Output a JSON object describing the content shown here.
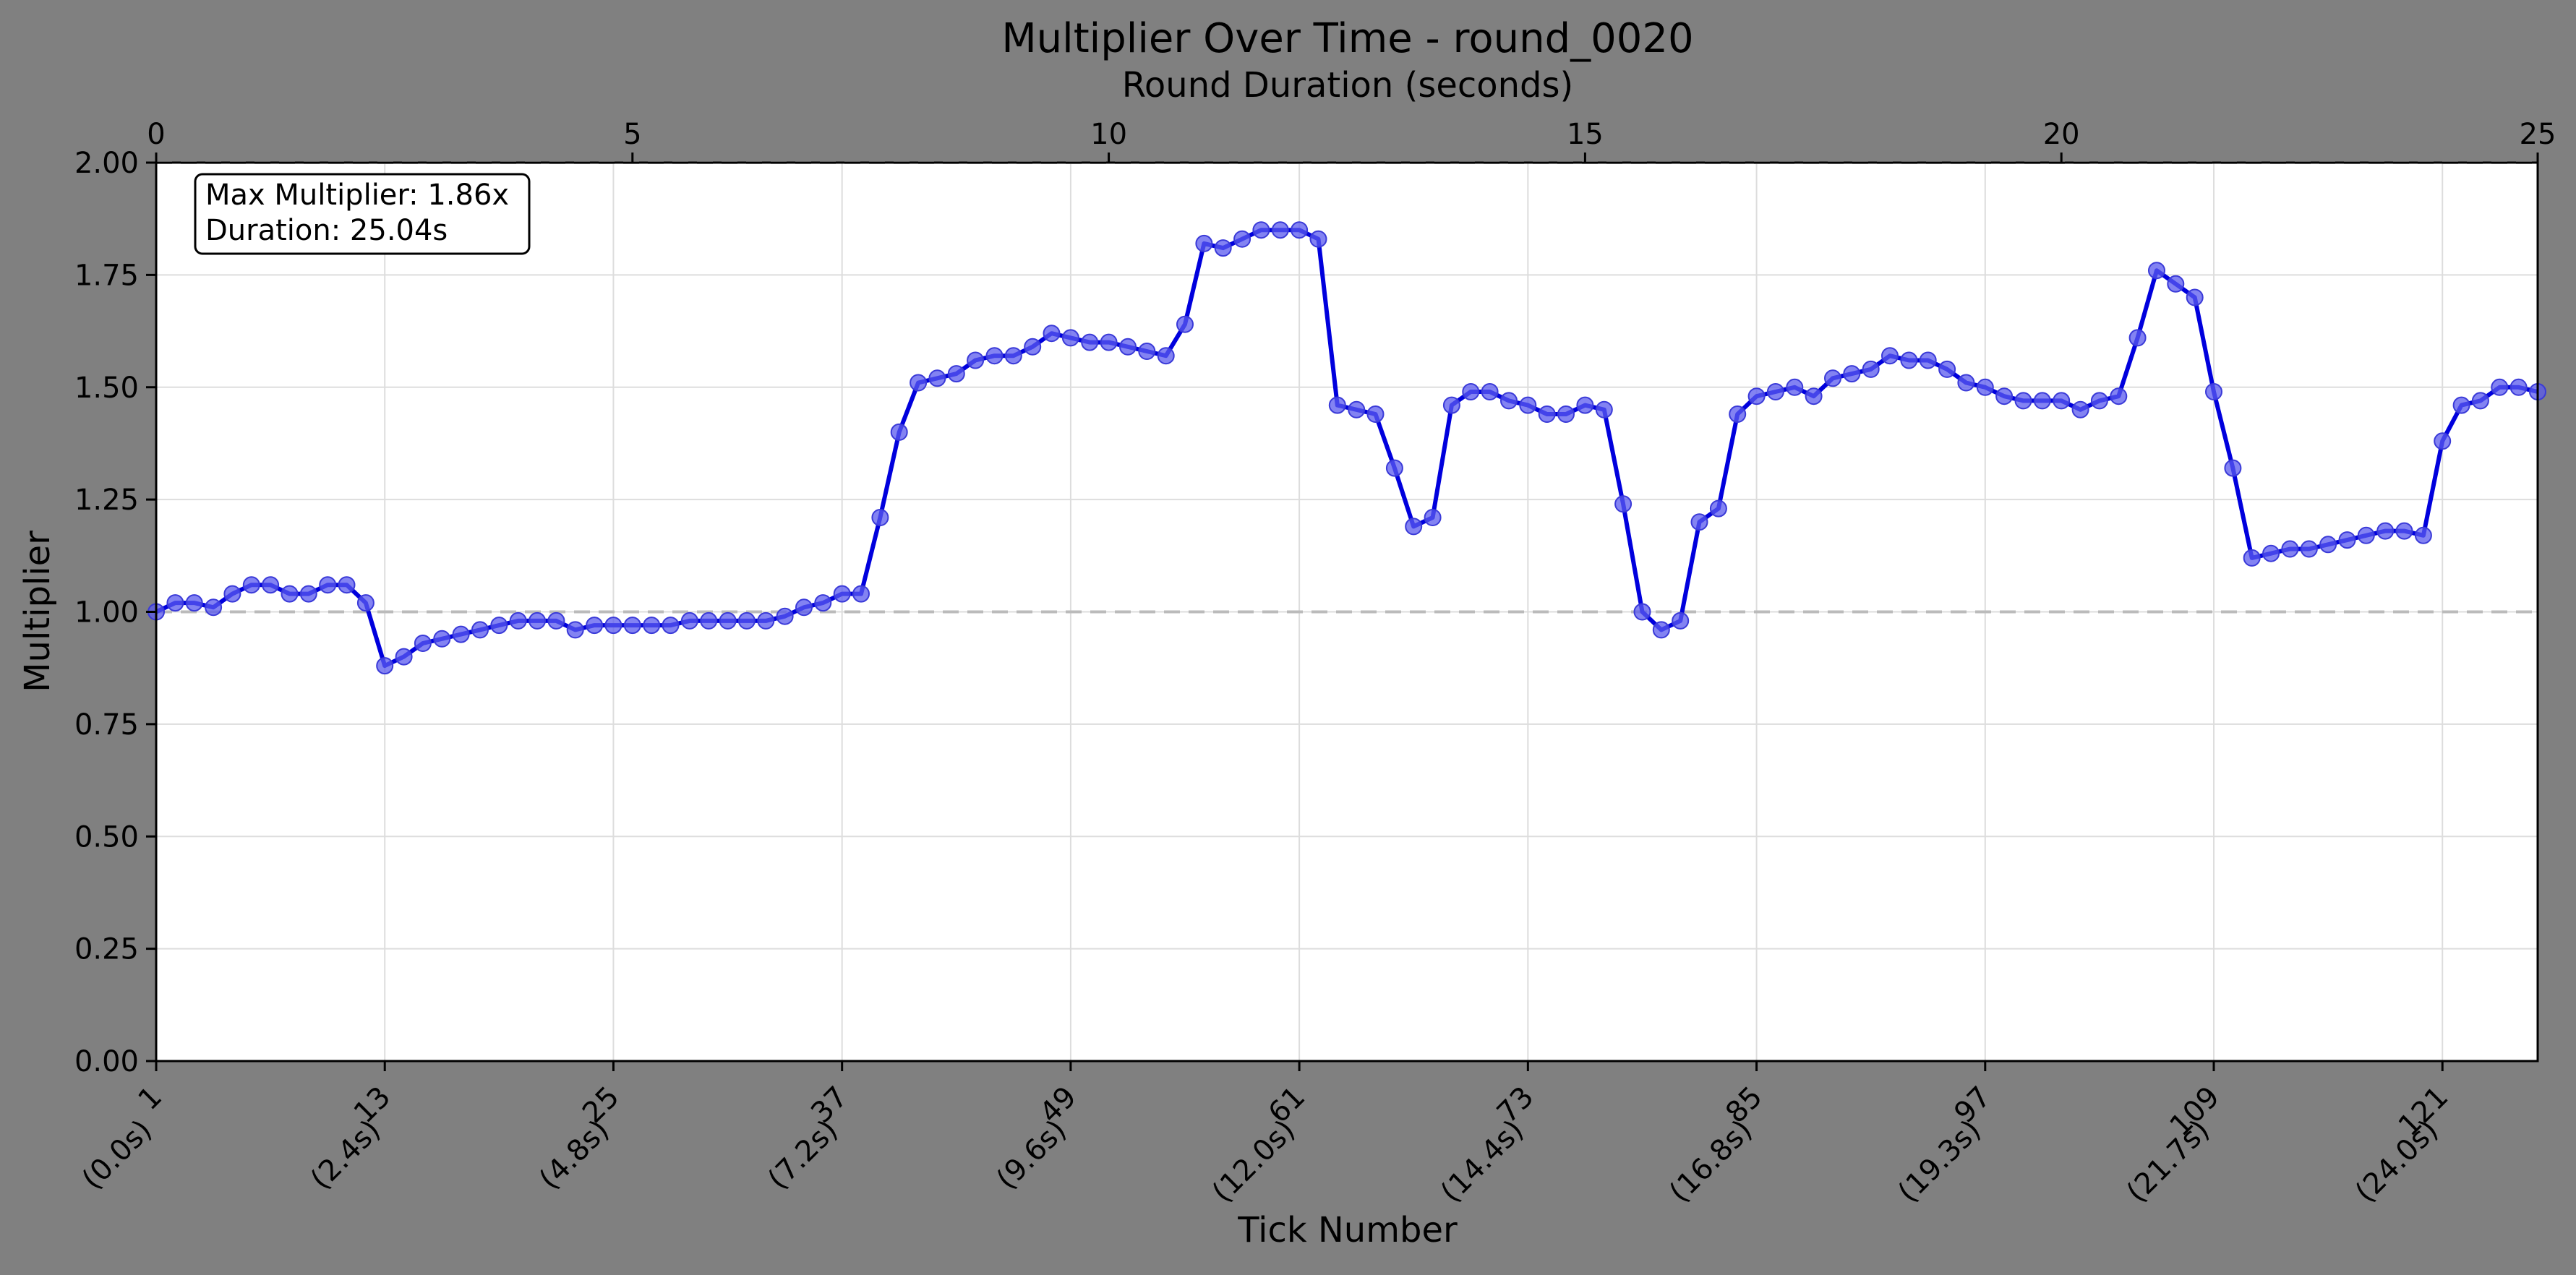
{
  "chart_data": {
    "type": "line",
    "title": "Multiplier Over Time - round_0020",
    "xlabel": "Tick Number",
    "ylabel": "Multiplier",
    "top_xlabel": "Round Duration (seconds)",
    "xlim": [
      1,
      126
    ],
    "ylim": [
      0.0,
      2.0
    ],
    "top_xlim": [
      0,
      25
    ],
    "top_ticks": [
      "0",
      "5",
      "10",
      "15",
      "20",
      "25"
    ],
    "y_ticks": [
      "0.00",
      "0.25",
      "0.50",
      "0.75",
      "1.00",
      "1.25",
      "1.50",
      "1.75",
      "2.00"
    ],
    "x_ticks": [
      {
        "tick": 1,
        "label": "1",
        "sub": "(0.0s)"
      },
      {
        "tick": 13,
        "label": "13",
        "sub": "(2.4s)"
      },
      {
        "tick": 25,
        "label": "25",
        "sub": "(4.8s)"
      },
      {
        "tick": 37,
        "label": "37",
        "sub": "(7.2s)"
      },
      {
        "tick": 49,
        "label": "49",
        "sub": "(9.6s)"
      },
      {
        "tick": 61,
        "label": "61",
        "sub": "(12.0s)"
      },
      {
        "tick": 73,
        "label": "73",
        "sub": "(14.4s)"
      },
      {
        "tick": 85,
        "label": "85",
        "sub": "(16.8s)"
      },
      {
        "tick": 97,
        "label": "97",
        "sub": "(19.3s)"
      },
      {
        "tick": 109,
        "label": "109",
        "sub": "(21.7s)"
      },
      {
        "tick": 121,
        "label": "121",
        "sub": "(24.0s)"
      }
    ],
    "reference_lines": [
      1.0,
      2.0
    ],
    "grid": true,
    "line_color": "#0000dd",
    "marker_color": "#5a5aee",
    "annotation": {
      "line1": "Max Multiplier: 1.86x",
      "line2": "Duration: 25.04s"
    },
    "series": [
      {
        "ticks": [
          1,
          2,
          3,
          4,
          5,
          6,
          7,
          8,
          9,
          10,
          11,
          12,
          13,
          14,
          15,
          16,
          17,
          18,
          19,
          20,
          21,
          22,
          23,
          24,
          25,
          26,
          27,
          28,
          29,
          30,
          31,
          32,
          33,
          34,
          35,
          36,
          37,
          38,
          39,
          40,
          41,
          42,
          43,
          44,
          45,
          46,
          47,
          48,
          49,
          50,
          51,
          52,
          53,
          54,
          55,
          56,
          57,
          58,
          59,
          60,
          61,
          62,
          63,
          64,
          65,
          66,
          67,
          68,
          69,
          70,
          71,
          72,
          73,
          74,
          75,
          76,
          77,
          78,
          79,
          80,
          81,
          82,
          83,
          84,
          85,
          86,
          87,
          88,
          89,
          90,
          91,
          92,
          93,
          94,
          95,
          96,
          97,
          98,
          99,
          100,
          101,
          102,
          103,
          104,
          105,
          106,
          107,
          108,
          109,
          110,
          111,
          112,
          113,
          114,
          115,
          116,
          117,
          118,
          119,
          120,
          121,
          122,
          123,
          124,
          125,
          126
        ],
        "values": [
          1.0,
          1.02,
          1.02,
          1.01,
          1.04,
          1.06,
          1.06,
          1.04,
          1.04,
          1.06,
          1.06,
          1.02,
          0.88,
          0.9,
          0.93,
          0.94,
          0.95,
          0.96,
          0.97,
          0.98,
          0.98,
          0.98,
          0.96,
          0.97,
          0.97,
          0.97,
          0.97,
          0.97,
          0.98,
          0.98,
          0.98,
          0.98,
          0.98,
          0.99,
          1.01,
          1.02,
          1.04,
          1.04,
          1.21,
          1.4,
          1.51,
          1.52,
          1.53,
          1.56,
          1.57,
          1.57,
          1.59,
          1.62,
          1.61,
          1.6,
          1.6,
          1.59,
          1.58,
          1.57,
          1.64,
          1.82,
          1.81,
          1.83,
          1.85,
          1.85,
          1.85,
          1.83,
          1.46,
          1.45,
          1.44,
          1.32,
          1.19,
          1.21,
          1.46,
          1.49,
          1.49,
          1.47,
          1.46,
          1.44,
          1.44,
          1.46,
          1.45,
          1.24,
          1.0,
          0.96,
          0.98,
          1.2,
          1.23,
          1.44,
          1.48,
          1.49,
          1.5,
          1.48,
          1.52,
          1.53,
          1.54,
          1.57,
          1.56,
          1.56,
          1.54,
          1.51,
          1.5,
          1.48,
          1.47,
          1.47,
          1.47,
          1.45,
          1.47,
          1.48,
          1.61,
          1.76,
          1.73,
          1.7,
          1.49,
          1.32,
          1.12,
          1.13,
          1.14,
          1.14,
          1.15,
          1.16,
          1.17,
          1.18,
          1.18,
          1.17,
          1.38,
          1.46,
          1.47,
          1.5,
          1.5,
          1.49
        ]
      }
    ]
  }
}
